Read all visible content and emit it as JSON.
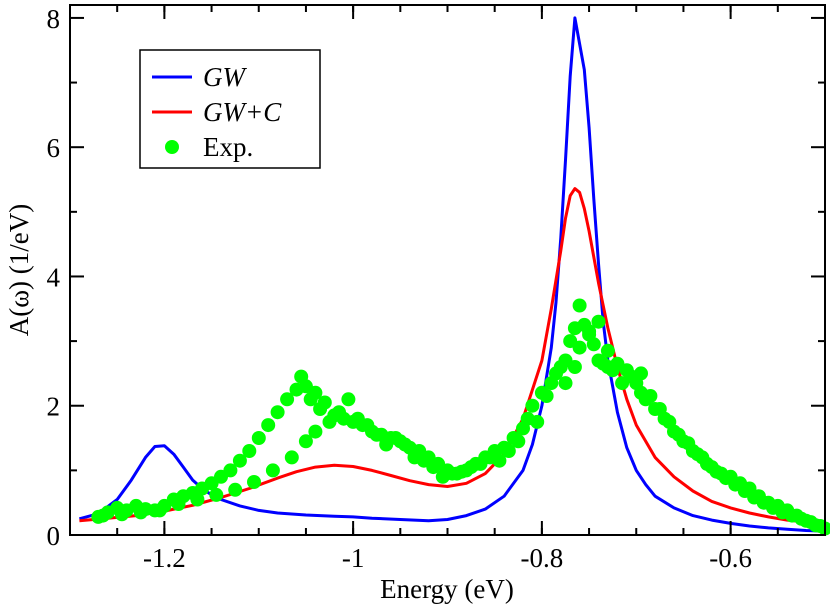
{
  "chart_data": {
    "type": "line",
    "title": "",
    "xlabel": "Energy (eV)",
    "ylabel": "A(ω) (1/eV)",
    "xlim": [
      -1.3,
      -0.5
    ],
    "ylim": [
      0,
      8.2
    ],
    "xticks": [
      -1.2,
      -1.0,
      -0.8,
      -0.6
    ],
    "xtick_labels": [
      "-1.2",
      "-1",
      "-0.8",
      "-0.6"
    ],
    "yticks": [
      0,
      2,
      4,
      6,
      8
    ],
    "ytick_labels": [
      "0",
      "2",
      "4",
      "6",
      "8"
    ],
    "grid": false,
    "legend_position": "top-left",
    "series": [
      {
        "name": "GW",
        "kind": "line",
        "color": "#0000ff",
        "x": [
          -1.29,
          -1.27,
          -1.25,
          -1.235,
          -1.22,
          -1.21,
          -1.2,
          -1.19,
          -1.18,
          -1.17,
          -1.16,
          -1.15,
          -1.14,
          -1.12,
          -1.1,
          -1.08,
          -1.05,
          -1.02,
          -1.0,
          -0.98,
          -0.95,
          -0.92,
          -0.9,
          -0.88,
          -0.86,
          -0.84,
          -0.82,
          -0.81,
          -0.8,
          -0.79,
          -0.785,
          -0.78,
          -0.775,
          -0.77,
          -0.765,
          -0.76,
          -0.755,
          -0.75,
          -0.745,
          -0.74,
          -0.735,
          -0.73,
          -0.72,
          -0.71,
          -0.7,
          -0.69,
          -0.68,
          -0.66,
          -0.64,
          -0.62,
          -0.6,
          -0.58,
          -0.56,
          -0.54,
          -0.52,
          -0.5
        ],
        "y": [
          0.25,
          0.33,
          0.55,
          0.85,
          1.2,
          1.37,
          1.38,
          1.25,
          1.05,
          0.85,
          0.72,
          0.62,
          0.55,
          0.45,
          0.38,
          0.34,
          0.31,
          0.29,
          0.28,
          0.26,
          0.24,
          0.22,
          0.24,
          0.3,
          0.4,
          0.6,
          1.0,
          1.4,
          2.0,
          2.9,
          3.6,
          4.6,
          5.8,
          7.1,
          8.0,
          7.6,
          7.2,
          6.3,
          5.2,
          4.2,
          3.3,
          2.7,
          1.9,
          1.35,
          1.0,
          0.78,
          0.6,
          0.42,
          0.3,
          0.23,
          0.18,
          0.14,
          0.11,
          0.09,
          0.07,
          0.06
        ]
      },
      {
        "name": "GW+C",
        "kind": "line",
        "color": "#ff0000",
        "x": [
          -1.29,
          -1.26,
          -1.23,
          -1.2,
          -1.17,
          -1.14,
          -1.11,
          -1.08,
          -1.06,
          -1.04,
          -1.02,
          -1.0,
          -0.98,
          -0.96,
          -0.94,
          -0.92,
          -0.9,
          -0.88,
          -0.86,
          -0.84,
          -0.82,
          -0.8,
          -0.79,
          -0.78,
          -0.775,
          -0.77,
          -0.765,
          -0.76,
          -0.755,
          -0.75,
          -0.74,
          -0.73,
          -0.72,
          -0.71,
          -0.7,
          -0.68,
          -0.66,
          -0.64,
          -0.62,
          -0.6,
          -0.58,
          -0.56,
          -0.54,
          -0.52,
          -0.5
        ],
        "y": [
          0.22,
          0.26,
          0.3,
          0.37,
          0.46,
          0.58,
          0.72,
          0.88,
          0.98,
          1.05,
          1.08,
          1.06,
          1.0,
          0.92,
          0.84,
          0.78,
          0.75,
          0.8,
          0.95,
          1.25,
          1.8,
          2.7,
          3.5,
          4.4,
          4.9,
          5.25,
          5.36,
          5.3,
          5.05,
          4.7,
          3.9,
          3.2,
          2.6,
          2.1,
          1.7,
          1.2,
          0.9,
          0.68,
          0.52,
          0.42,
          0.34,
          0.28,
          0.23,
          0.2,
          0.18
        ]
      },
      {
        "name": "Exp.",
        "kind": "scatter",
        "color": "#00ff00",
        "x": [
          -1.27,
          -1.26,
          -1.25,
          -1.24,
          -1.23,
          -1.22,
          -1.21,
          -1.2,
          -1.19,
          -1.18,
          -1.17,
          -1.16,
          -1.15,
          -1.14,
          -1.13,
          -1.12,
          -1.11,
          -1.1,
          -1.09,
          -1.08,
          -1.07,
          -1.06,
          -1.055,
          -1.05,
          -1.045,
          -1.04,
          -1.035,
          -1.03,
          -1.02,
          -1.01,
          -1.0,
          -0.99,
          -0.98,
          -0.97,
          -0.96,
          -0.95,
          -0.94,
          -0.93,
          -0.92,
          -0.91,
          -0.9,
          -0.89,
          -0.88,
          -0.87,
          -0.86,
          -0.85,
          -0.84,
          -0.83,
          -0.82,
          -0.815,
          -0.81,
          -0.8,
          -0.79,
          -0.785,
          -0.78,
          -0.775,
          -0.77,
          -0.765,
          -0.76,
          -0.755,
          -0.75,
          -0.745,
          -0.74,
          -0.735,
          -0.73,
          -0.72,
          -0.71,
          -0.7,
          -0.695,
          -0.69,
          -0.68,
          -0.67,
          -0.66,
          -0.65,
          -0.64,
          -0.63,
          -0.62,
          -0.61,
          -0.6,
          -0.59,
          -0.58,
          -0.57,
          -0.56,
          -0.55,
          -0.54,
          -0.53,
          -0.52,
          -0.51,
          -0.5,
          -1.265,
          -1.245,
          -1.225,
          -1.205,
          -1.185,
          -1.165,
          -1.145,
          -1.125,
          -1.105,
          -1.085,
          -1.065,
          -1.05,
          -1.04,
          -1.025,
          -1.015,
          -1.005,
          -0.995,
          -0.985,
          -0.975,
          -0.965,
          -0.955,
          -0.945,
          -0.935,
          -0.925,
          -0.915,
          -0.905,
          -0.895,
          -0.885,
          -0.875,
          -0.865,
          -0.855,
          -0.845,
          -0.835,
          -0.825,
          -0.805,
          -0.795,
          -0.775,
          -0.765,
          -0.76,
          -0.75,
          -0.74,
          -0.73,
          -0.725,
          -0.715,
          -0.705,
          -0.695,
          -0.685,
          -0.675,
          -0.665,
          -0.655,
          -0.645,
          -0.635,
          -0.625,
          -0.615,
          -0.605,
          -0.595,
          -0.585,
          -0.575,
          -0.565,
          -0.555,
          -0.545,
          -0.535,
          -0.525,
          -0.515,
          -0.505
        ],
        "y": [
          0.28,
          0.35,
          0.42,
          0.38,
          0.45,
          0.4,
          0.38,
          0.45,
          0.55,
          0.6,
          0.65,
          0.72,
          0.8,
          0.9,
          1.0,
          1.15,
          1.3,
          1.5,
          1.7,
          1.9,
          2.1,
          2.25,
          2.45,
          2.3,
          2.1,
          2.2,
          1.95,
          2.05,
          1.85,
          1.8,
          1.75,
          1.7,
          1.6,
          1.55,
          1.5,
          1.45,
          1.35,
          1.3,
          1.2,
          1.1,
          1.0,
          0.95,
          1.0,
          1.1,
          1.2,
          1.3,
          1.35,
          1.5,
          1.65,
          1.8,
          2.0,
          2.2,
          2.35,
          2.5,
          2.6,
          2.7,
          3.0,
          3.2,
          3.55,
          3.25,
          3.1,
          2.95,
          2.7,
          2.65,
          2.6,
          2.65,
          2.55,
          2.35,
          2.2,
          2.1,
          1.95,
          1.8,
          1.6,
          1.45,
          1.3,
          1.2,
          1.05,
          0.95,
          0.9,
          0.8,
          0.72,
          0.6,
          0.5,
          0.45,
          0.38,
          0.3,
          0.22,
          0.15,
          0.1,
          0.3,
          0.32,
          0.35,
          0.38,
          0.48,
          0.55,
          0.62,
          0.7,
          0.82,
          1.0,
          1.2,
          1.45,
          1.6,
          1.75,
          1.9,
          2.1,
          1.8,
          1.7,
          1.55,
          1.4,
          1.5,
          1.4,
          1.2,
          1.15,
          1.05,
          0.9,
          0.95,
          0.98,
          1.05,
          1.1,
          1.2,
          1.15,
          1.3,
          1.45,
          1.75,
          2.15,
          2.35,
          2.6,
          2.9,
          3.15,
          3.3,
          2.85,
          2.55,
          2.35,
          2.45,
          2.5,
          2.15,
          1.95,
          1.75,
          1.55,
          1.42,
          1.25,
          1.1,
          0.98,
          0.88,
          0.78,
          0.68,
          0.58,
          0.5,
          0.42,
          0.35,
          0.3,
          0.25,
          0.2,
          0.14
        ]
      }
    ]
  }
}
